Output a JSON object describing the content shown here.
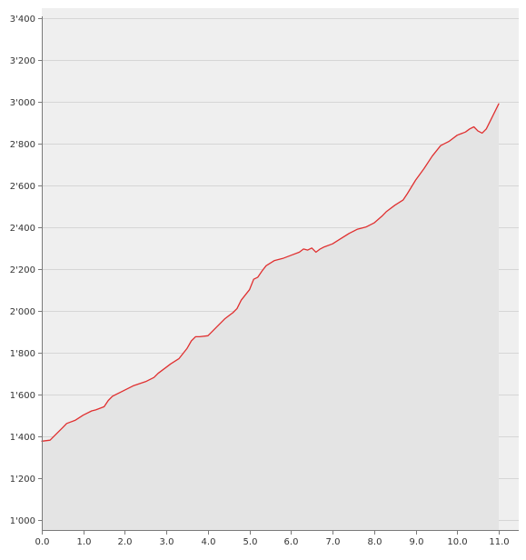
{
  "chart_data": {
    "type": "area",
    "title": "",
    "xlabel": "",
    "ylabel": "",
    "xlim": [
      0,
      11
    ],
    "ylim": [
      950,
      3400
    ],
    "grid": true,
    "legend": "none",
    "x_tick_labels": [
      "0.0",
      "1.0",
      "2.0",
      "3.0",
      "4.0",
      "5.0",
      "6.0",
      "7.0",
      "8.0",
      "9.0",
      "10.0",
      "11.0"
    ],
    "y_tick_values": [
      1000,
      1200,
      1400,
      1600,
      1800,
      2000,
      2200,
      2400,
      2600,
      2800,
      3000,
      3200,
      3400
    ],
    "y_tick_labels": [
      "1'000",
      "1'200",
      "1'400",
      "1'600",
      "1'800",
      "2'000",
      "2'200",
      "2'400",
      "2'600",
      "2'800",
      "3'000",
      "3'200",
      "3'400"
    ],
    "series": [
      {
        "color": "#e03030",
        "fill": "#e4e4e4",
        "x": [
          0.0,
          0.2,
          0.3,
          0.5,
          0.6,
          0.8,
          1.0,
          1.2,
          1.3,
          1.5,
          1.6,
          1.7,
          1.9,
          2.2,
          2.5,
          2.7,
          2.8,
          3.0,
          3.1,
          3.3,
          3.5,
          3.6,
          3.7,
          3.8,
          4.0,
          4.2,
          4.4,
          4.6,
          4.7,
          4.8,
          5.0,
          5.1,
          5.2,
          5.3,
          5.4,
          5.6,
          5.8,
          6.0,
          6.2,
          6.3,
          6.4,
          6.5,
          6.6,
          6.7,
          6.8,
          7.0,
          7.2,
          7.4,
          7.6,
          7.8,
          8.0,
          8.2,
          8.3,
          8.5,
          8.7,
          8.8,
          9.0,
          9.2,
          9.4,
          9.6,
          9.8,
          10.0,
          10.2,
          10.3,
          10.4,
          10.5,
          10.6,
          10.7,
          10.8,
          11.0
        ],
        "y": [
          1375,
          1380,
          1400,
          1440,
          1460,
          1475,
          1500,
          1520,
          1525,
          1540,
          1570,
          1590,
          1610,
          1640,
          1660,
          1680,
          1700,
          1730,
          1745,
          1770,
          1820,
          1855,
          1875,
          1875,
          1880,
          1920,
          1960,
          1990,
          2010,
          2050,
          2100,
          2150,
          2160,
          2190,
          2215,
          2240,
          2250,
          2265,
          2280,
          2295,
          2290,
          2300,
          2280,
          2295,
          2305,
          2320,
          2345,
          2370,
          2390,
          2400,
          2420,
          2455,
          2475,
          2505,
          2530,
          2560,
          2625,
          2680,
          2740,
          2790,
          2810,
          2840,
          2855,
          2870,
          2880,
          2860,
          2850,
          2870,
          2910,
          2990
        ]
      }
    ]
  }
}
